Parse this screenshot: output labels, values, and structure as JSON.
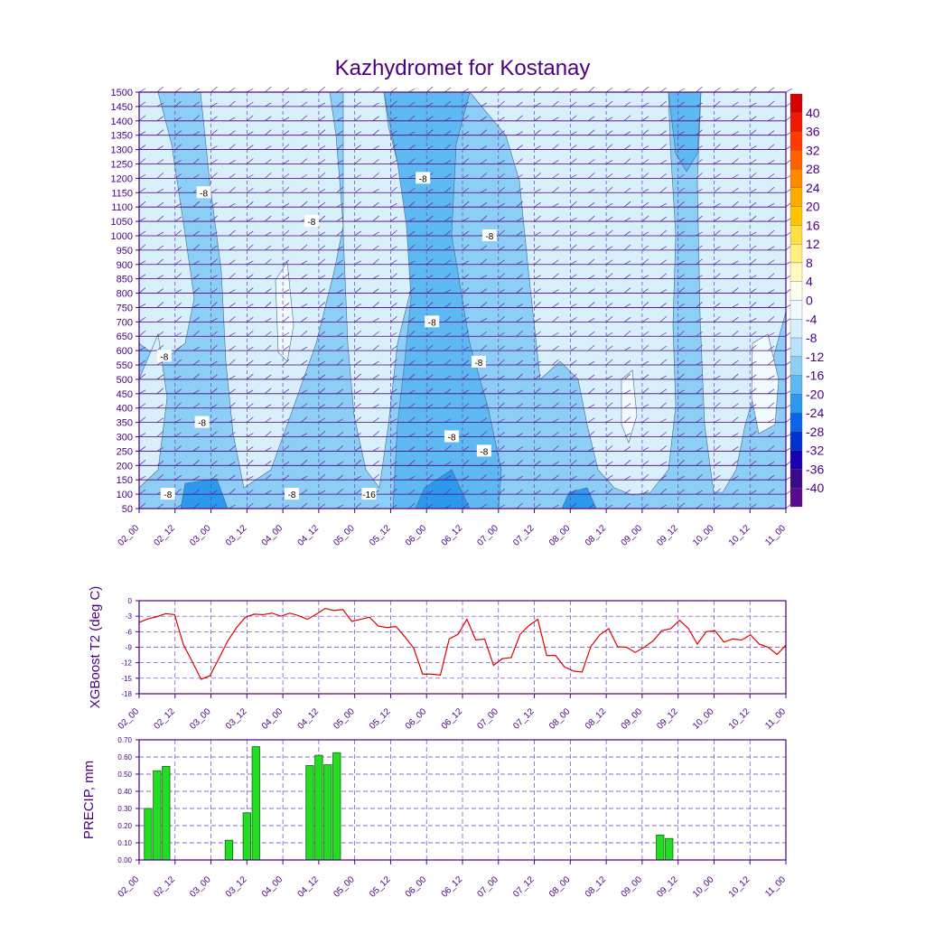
{
  "title": "Kazhydromet for Kostanay",
  "colors": {
    "axis": "#4b0082",
    "grid": "#6a3fb5",
    "t2_line": "#e00000",
    "precip_bar": "#22dd22",
    "precip_edge": "#116611",
    "barb": "#5a2a9a"
  },
  "time_labels": [
    "02_00",
    "02_12",
    "03_00",
    "03_12",
    "04_00",
    "04_12",
    "05_00",
    "05_12",
    "06_00",
    "06_12",
    "07_00",
    "07_12",
    "08_00",
    "08_12",
    "09_00",
    "09_12",
    "10_00",
    "10_12",
    "11_00"
  ],
  "chart_data": [
    {
      "type": "heatmap",
      "name": "cross-section",
      "x_labels": [
        "02_00",
        "02_12",
        "03_00",
        "03_12",
        "04_00",
        "04_12",
        "05_00",
        "05_12",
        "06_00",
        "06_12",
        "07_00",
        "07_12",
        "08_00",
        "08_12",
        "09_00",
        "09_12",
        "10_00",
        "10_12",
        "11_00"
      ],
      "y_ticks": [
        50,
        100,
        150,
        200,
        250,
        300,
        350,
        400,
        450,
        500,
        550,
        600,
        650,
        700,
        750,
        800,
        850,
        900,
        950,
        1000,
        1050,
        1100,
        1150,
        1200,
        1250,
        1300,
        1350,
        1400,
        1450,
        1500
      ],
      "ylim": [
        50,
        1500
      ],
      "colorbar": {
        "labels": [
          "40",
          "36",
          "32",
          "28",
          "24",
          "20",
          "16",
          "12",
          "8",
          "4",
          "0",
          "-4",
          "-8",
          "-12",
          "-16",
          "-20",
          "-24",
          "-28",
          "-32",
          "-36",
          "-40"
        ],
        "colors": [
          "#d60000",
          "#f01800",
          "#ff3a00",
          "#ff6000",
          "#ff8800",
          "#ffaa00",
          "#ffc400",
          "#ffdd44",
          "#fff080",
          "#fffbc0",
          "#fffff0",
          "#f0fbff",
          "#d8f0fb",
          "#b8e2f8",
          "#8ccef6",
          "#5eb8f2",
          "#2c98ee",
          "#0a66e8",
          "#0030d0",
          "#1800b0",
          "#3a0a8a",
          "#5a0a8a"
        ]
      },
      "contour_labels": [
        {
          "text": "-8",
          "x": 3.6,
          "level": 1150
        },
        {
          "text": "-8",
          "x": 9.6,
          "level": 1050
        },
        {
          "text": "-8",
          "x": 15.8,
          "level": 1200
        },
        {
          "text": "-8",
          "x": 16.3,
          "level": 700
        },
        {
          "text": "-8",
          "x": 19.5,
          "level": 1000
        },
        {
          "text": "-8",
          "x": 1.4,
          "level": 580
        },
        {
          "text": "-8",
          "x": 3.5,
          "level": 350
        },
        {
          "text": "-8",
          "x": 18.9,
          "level": 560
        },
        {
          "text": "-8",
          "x": 17.4,
          "level": 300
        },
        {
          "text": "-8",
          "x": 19.2,
          "level": 250
        },
        {
          "text": "-8",
          "x": 8.5,
          "level": 100
        },
        {
          "text": "-8",
          "x": 1.6,
          "level": 100
        },
        {
          "text": "-16",
          "x": 12.8,
          "level": 100
        }
      ]
    },
    {
      "type": "line",
      "ylabel": "XGBoost T2 (deg C)",
      "ylim": [
        -18,
        0
      ],
      "y_ticks": [
        0,
        -3,
        -6,
        -9,
        -12,
        -15,
        -18
      ],
      "x_labels": [
        "02_00",
        "02_12",
        "03_00",
        "03_12",
        "04_00",
        "04_12",
        "05_00",
        "05_12",
        "06_00",
        "06_12",
        "07_00",
        "07_12",
        "08_00",
        "08_12",
        "09_00",
        "09_12",
        "10_00",
        "10_12",
        "11_00"
      ],
      "values": [
        -4.2,
        -3.5,
        -3.1,
        -2.5,
        -2.7,
        -8.5,
        -11.8,
        -15.2,
        -14.5,
        -11.2,
        -7.8,
        -5.2,
        -3.2,
        -2.6,
        -2.7,
        -2.4,
        -3.0,
        -2.4,
        -2.9,
        -3.6,
        -2.6,
        -1.5,
        -1.9,
        -1.7,
        -4.0,
        -3.6,
        -3.2,
        -4.9,
        -5.2,
        -5.0,
        -7.0,
        -9.2,
        -14.2,
        -14.2,
        -14.4,
        -7.4,
        -6.5,
        -3.6,
        -7.6,
        -7.4,
        -12.5,
        -11.2,
        -11.0,
        -6.5,
        -4.8,
        -3.6,
        -10.6,
        -10.6,
        -12.8,
        -13.6,
        -13.8,
        -8.8,
        -6.6,
        -5.4,
        -8.9,
        -9.0,
        -10.0,
        -9.0,
        -7.8,
        -5.8,
        -5.4,
        -3.8,
        -5.4,
        -8.4,
        -6.0,
        -5.8,
        -8.0,
        -7.4,
        -7.6,
        -6.6,
        -8.4,
        -9.0,
        -10.4,
        -8.6
      ]
    },
    {
      "type": "bar",
      "ylabel": "PRECIP, mm",
      "ylim": [
        0,
        0.7
      ],
      "y_ticks": [
        "0.00",
        "0.10",
        "0.20",
        "0.30",
        "0.40",
        "0.50",
        "0.60",
        "0.70"
      ],
      "x_labels": [
        "02_00",
        "02_12",
        "03_00",
        "03_12",
        "04_00",
        "04_12",
        "05_00",
        "05_12",
        "06_00",
        "06_12",
        "07_00",
        "07_12",
        "08_00",
        "08_12",
        "09_00",
        "09_12",
        "10_00",
        "10_12",
        "11_00"
      ],
      "bars": [
        {
          "t": 0.5,
          "v": 0.3
        },
        {
          "t": 1.0,
          "v": 0.52
        },
        {
          "t": 1.5,
          "v": 0.545
        },
        {
          "t": 5.0,
          "v": 0.115
        },
        {
          "t": 6.0,
          "v": 0.275
        },
        {
          "t": 6.5,
          "v": 0.66
        },
        {
          "t": 9.5,
          "v": 0.55
        },
        {
          "t": 10.0,
          "v": 0.61
        },
        {
          "t": 10.5,
          "v": 0.555
        },
        {
          "t": 11.0,
          "v": 0.625
        },
        {
          "t": 29.0,
          "v": 0.145
        },
        {
          "t": 29.5,
          "v": 0.125
        }
      ]
    }
  ]
}
